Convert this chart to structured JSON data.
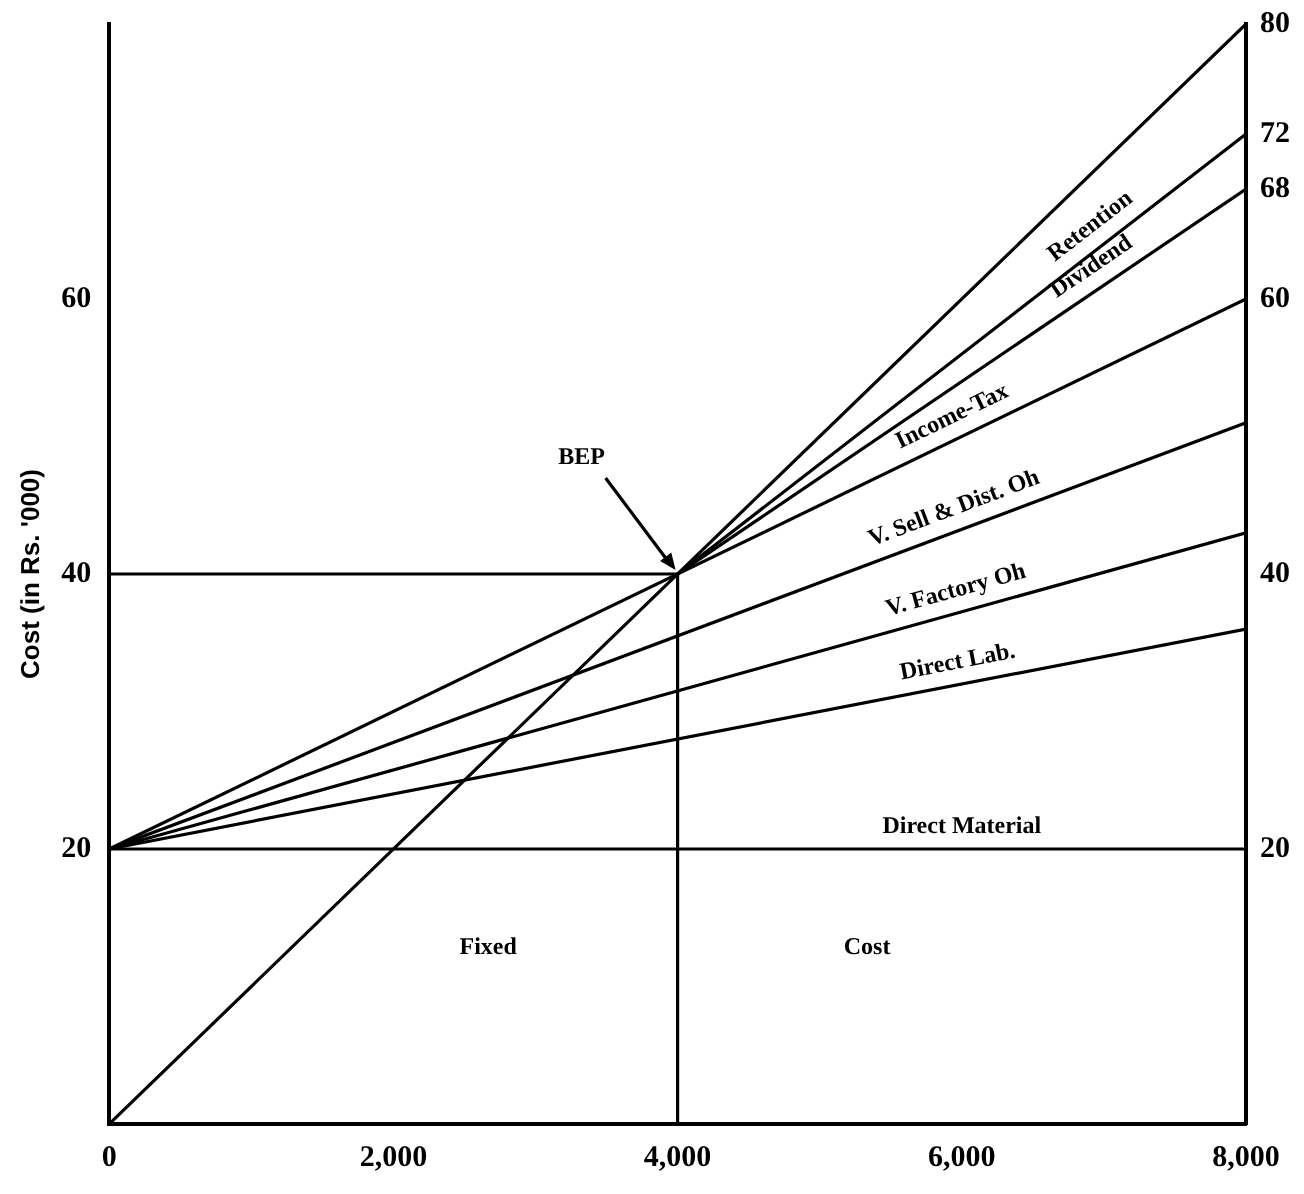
{
  "chart_data": {
    "type": "line",
    "ylabel": "Cost (in Rs. '000)",
    "xlim": [
      0,
      8000
    ],
    "xticks": [
      0,
      {
        "value": 2000,
        "label": "2,000"
      },
      {
        "value": 4000,
        "label": "4,000"
      },
      {
        "value": 6000,
        "label": "6,000"
      },
      {
        "value": 8000,
        "label": "8,000"
      }
    ],
    "ylim": [
      0,
      80
    ],
    "yticks": [
      20,
      40,
      60
    ],
    "y2lim": [
      0,
      80
    ],
    "y2ticks": [
      20,
      40,
      60,
      68,
      72,
      80
    ],
    "series": [
      {
        "color": "#000000",
        "x": [
          0,
          8000
        ],
        "values": [
          0,
          80
        ]
      },
      {
        "name": "Retention",
        "color": "#000000",
        "x": [
          4000,
          8000
        ],
        "values": [
          40,
          72
        ]
      },
      {
        "name": "Dividend",
        "color": "#000000",
        "x": [
          4000,
          8000
        ],
        "values": [
          40,
          68
        ]
      },
      {
        "name": "Income-Tax",
        "color": "#000000",
        "x": [
          0,
          8000
        ],
        "values": [
          20,
          60
        ]
      },
      {
        "name": "V. Sell & Dist. Oh",
        "color": "#000000",
        "x": [
          0,
          8000
        ],
        "values": [
          20,
          51
        ]
      },
      {
        "name": "V. Factory Oh",
        "color": "#000000",
        "x": [
          0,
          8000
        ],
        "values": [
          20,
          43
        ]
      },
      {
        "name": "Direct Lab.",
        "color": "#000000",
        "x": [
          0,
          8000
        ],
        "values": [
          20,
          36
        ]
      },
      {
        "name": "Direct Material",
        "color": "#000000",
        "x": [
          0,
          8000
        ],
        "values": [
          20,
          20
        ]
      },
      {
        "color": "#000000",
        "x": [
          0,
          4000
        ],
        "values": [
          40,
          40
        ]
      },
      {
        "color": "#000000",
        "x": [
          4000,
          4000
        ],
        "values": [
          0,
          40
        ]
      }
    ],
    "annotations": [
      {
        "text": "BEP",
        "x": 4000,
        "y": 40
      },
      "Fixed",
      "Cost"
    ],
    "marker": "none",
    "line_style": "solid",
    "grid": false,
    "legend": false
  }
}
